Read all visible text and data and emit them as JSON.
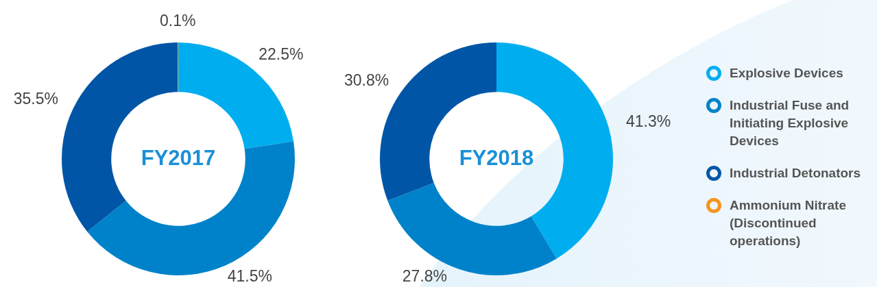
{
  "chart_data": {
    "type": "donut",
    "categories": [
      "Explosive Devices",
      "Industrial Fuse and Initiating Explosive Devices",
      "Industrial Detonators",
      "Ammonium Nitrate (Discontinued operations)"
    ],
    "colors": [
      "#00aeef",
      "#0082ca",
      "#0055a6",
      "#f7941d"
    ],
    "series": [
      {
        "name": "FY2017",
        "values": [
          22.5,
          41.5,
          35.5,
          0.1
        ],
        "value_labels": [
          "22.5%",
          "41.5%",
          "35.5%",
          "0.1%"
        ]
      },
      {
        "name": "FY2018",
        "values": [
          41.3,
          27.8,
          30.8,
          null
        ],
        "value_labels": [
          "41.3%",
          "27.8%",
          "30.8%",
          null
        ]
      }
    ],
    "legend": "right"
  }
}
